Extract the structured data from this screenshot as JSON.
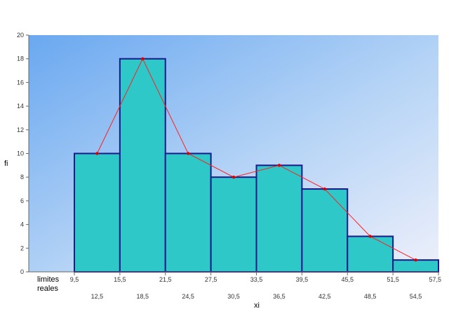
{
  "chart_data": {
    "type": "bar",
    "subtype": "histogram-with-frequency-polygon",
    "title": "",
    "xlabel": "xi",
    "ylabel": "fi",
    "ylim": [
      0,
      20
    ],
    "y_ticks": [
      0,
      2,
      4,
      6,
      8,
      10,
      12,
      14,
      16,
      18,
      20
    ],
    "row_label_line1": "limites",
    "row_label_line2": "reales",
    "boundaries": [
      "9,5",
      "15,5",
      "21,5",
      "27,5",
      "33,5",
      "39,5",
      "45,5",
      "51,5",
      "57,5"
    ],
    "class_marks": [
      "12,5",
      "18,5",
      "24,5",
      "30,5",
      "36,5",
      "42,5",
      "48,5",
      "54,5"
    ],
    "values": [
      10,
      18,
      10,
      8,
      9,
      7,
      3,
      1
    ],
    "grid": false,
    "legend": "none",
    "colors": {
      "bar_fill": "#2ec8c8",
      "bar_stroke": "#1a1a8c",
      "polygon_line": "#ff2020",
      "polygon_marker": "#e00000",
      "plot_bg_start": "#6aa8f0",
      "plot_bg_end": "#eef0fb"
    }
  }
}
